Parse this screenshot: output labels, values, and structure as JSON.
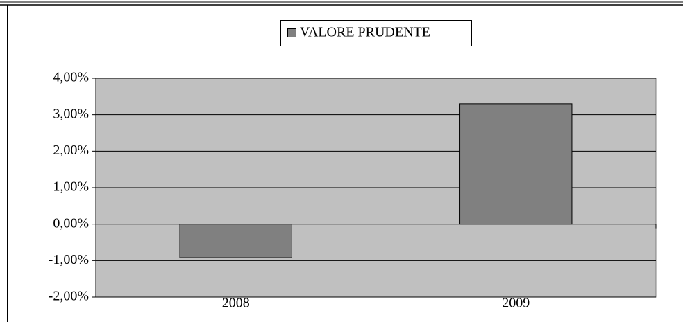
{
  "chart_data": {
    "type": "bar",
    "categories": [
      "2008",
      "2009"
    ],
    "series": [
      {
        "name": "VALORE PRUDENTE",
        "color": "#808080",
        "values": [
          -0.92,
          3.3
        ]
      }
    ],
    "ylim": [
      -2,
      4
    ],
    "yticks": [
      {
        "value": -2,
        "label": "-2,00%"
      },
      {
        "value": -1,
        "label": "-1,00%"
      },
      {
        "value": 0,
        "label": "0,00%"
      },
      {
        "value": 1,
        "label": "1,00%"
      },
      {
        "value": 2,
        "label": "2,00%"
      },
      {
        "value": 3,
        "label": "3,00%"
      },
      {
        "value": 4,
        "label": "4,00%"
      }
    ],
    "grid": true,
    "legend": "top"
  }
}
